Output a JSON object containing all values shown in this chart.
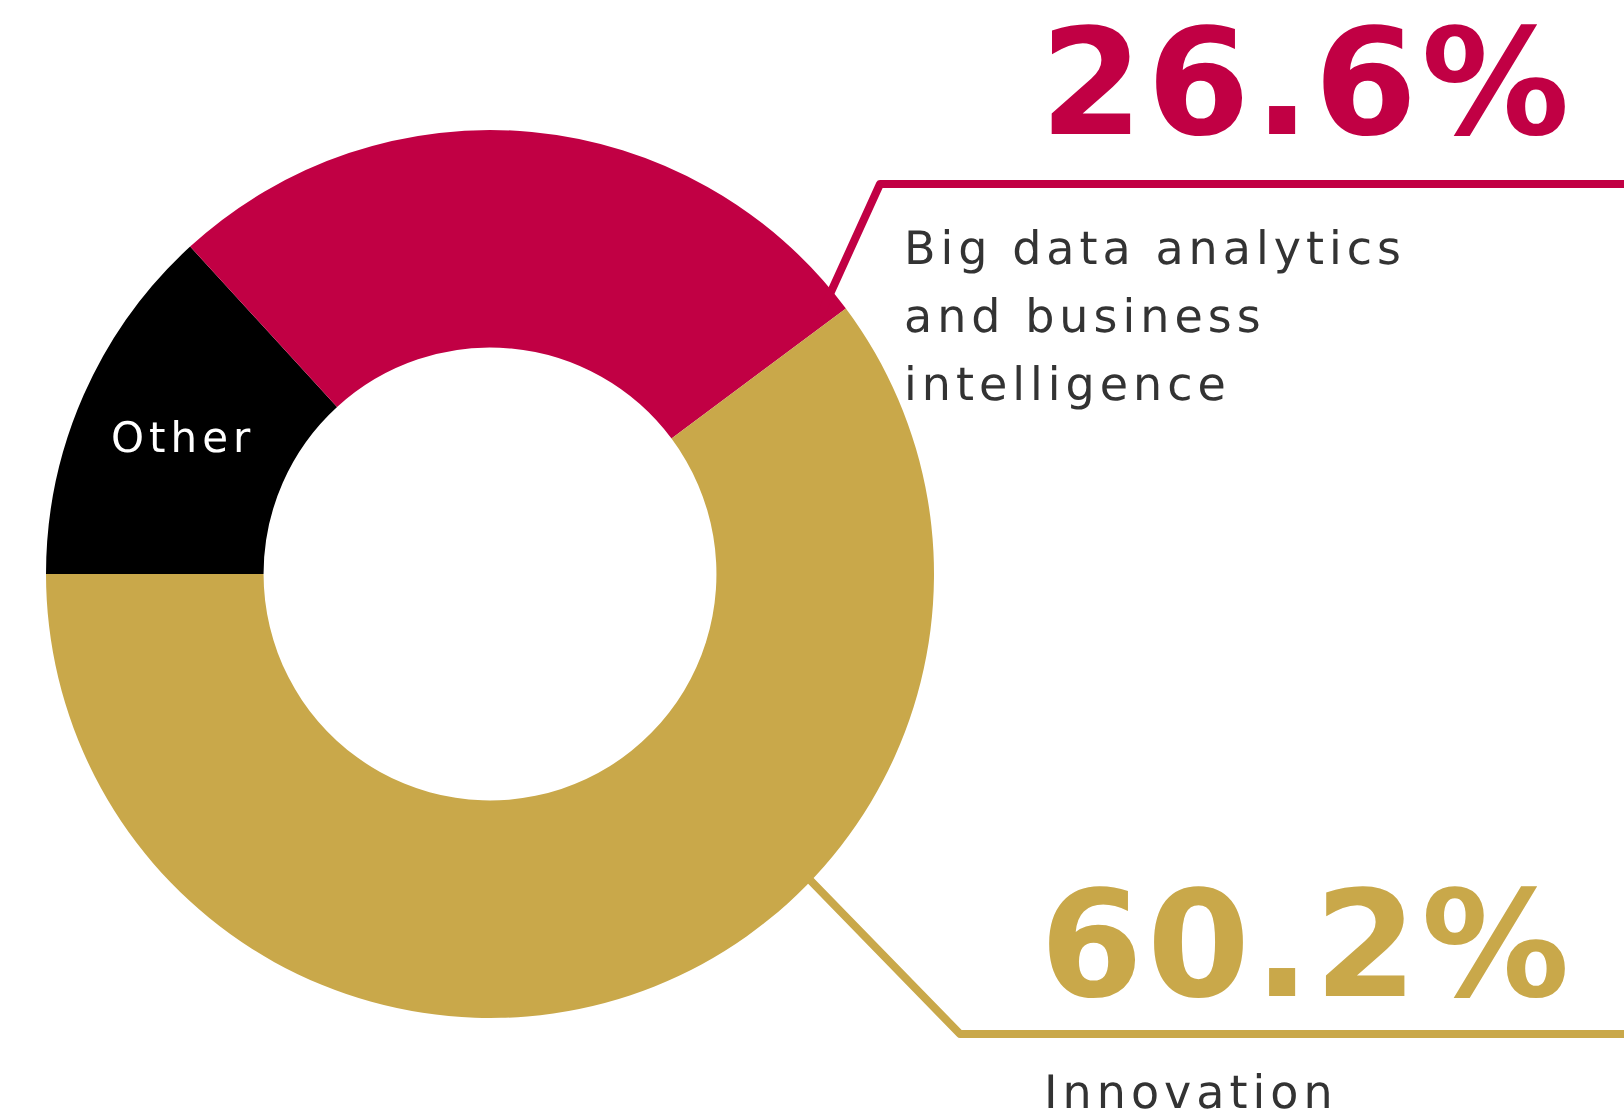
{
  "chart_data": {
    "type": "donut",
    "categories": [
      "Other",
      "Big data analytics and business intelligence",
      "Innovation"
    ],
    "values": [
      13.2,
      26.6,
      60.2
    ],
    "colors": [
      "#000000",
      "#c10044",
      "#c9a84a"
    ],
    "value_labels": [
      null,
      "26.6%",
      "60.2%"
    ],
    "legend": false
  }
}
